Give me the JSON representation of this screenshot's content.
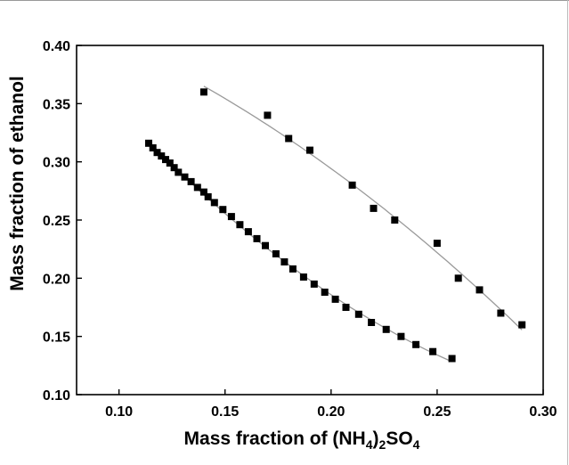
{
  "chart_data": {
    "type": "scatter",
    "title": "",
    "xlabel": "Mass fraction of (NH4)2SO4",
    "xlabel_parts": [
      {
        "text": "Mass fraction of (NH",
        "sub": false
      },
      {
        "text": "4",
        "sub": true
      },
      {
        "text": ")",
        "sub": false
      },
      {
        "text": "2",
        "sub": true
      },
      {
        "text": "SO",
        "sub": false
      },
      {
        "text": "4",
        "sub": true
      }
    ],
    "ylabel": "Mass fraction of ethanol",
    "xlim": [
      0.08,
      0.3
    ],
    "ylim": [
      0.1,
      0.4
    ],
    "xticks": [
      "0.10",
      "0.15",
      "0.20",
      "0.25",
      "0.30"
    ],
    "yticks": [
      "0.10",
      "0.15",
      "0.20",
      "0.25",
      "0.30",
      "0.35",
      "0.40"
    ],
    "grid": false,
    "legend": "none",
    "marker_color": "#000000",
    "fit_color": "#9a9a9a",
    "series": [
      {
        "marker": "square",
        "fit_line": true,
        "x": [
          0.114,
          0.116,
          0.118,
          0.12,
          0.122,
          0.124,
          0.126,
          0.128,
          0.131,
          0.134,
          0.137,
          0.14,
          0.142,
          0.145,
          0.149,
          0.153,
          0.157,
          0.161,
          0.165,
          0.169,
          0.174,
          0.178,
          0.182,
          0.187,
          0.192,
          0.197,
          0.202,
          0.207,
          0.213,
          0.219,
          0.226,
          0.233,
          0.24,
          0.248,
          0.257
        ],
        "y": [
          0.316,
          0.312,
          0.308,
          0.305,
          0.302,
          0.299,
          0.295,
          0.291,
          0.287,
          0.283,
          0.278,
          0.274,
          0.27,
          0.265,
          0.259,
          0.253,
          0.246,
          0.24,
          0.234,
          0.228,
          0.221,
          0.214,
          0.208,
          0.201,
          0.195,
          0.188,
          0.182,
          0.175,
          0.169,
          0.162,
          0.156,
          0.15,
          0.143,
          0.137,
          0.131
        ]
      },
      {
        "marker": "square",
        "fit_line": true,
        "x": [
          0.14,
          0.17,
          0.18,
          0.19,
          0.21,
          0.22,
          0.23,
          0.25,
          0.26,
          0.27,
          0.28,
          0.29
        ],
        "y": [
          0.36,
          0.34,
          0.32,
          0.31,
          0.28,
          0.26,
          0.25,
          0.23,
          0.2,
          0.19,
          0.17,
          0.16
        ]
      }
    ]
  }
}
